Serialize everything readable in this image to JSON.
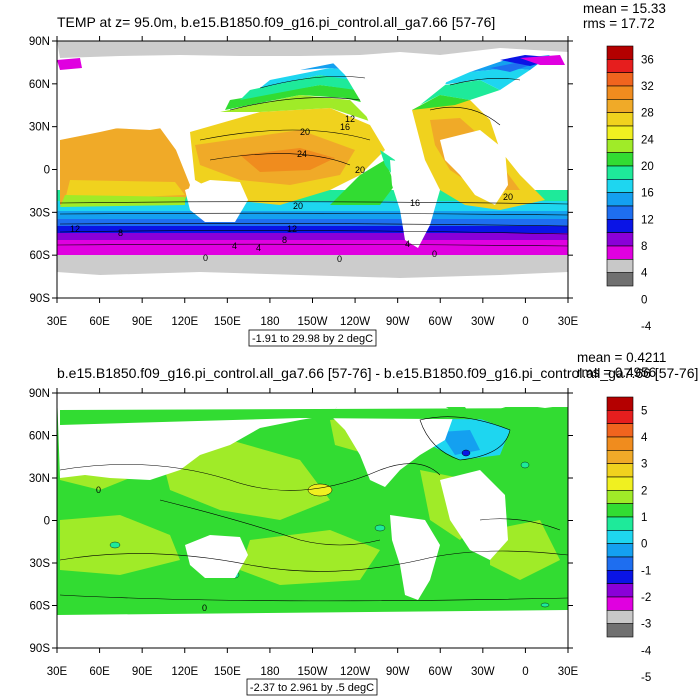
{
  "colors": {
    "land": "#ffffff",
    "ice": "#cccccc",
    "frame": "#000000",
    "palette": [
      "#707070",
      "#c8c8c8",
      "#e000e0",
      "#8a00d8",
      "#0a14e6",
      "#1e6ef0",
      "#14a0f0",
      "#1ed6f0",
      "#1eea9a",
      "#32dc32",
      "#a0eb28",
      "#f0f020",
      "#f0d21e",
      "#f0aa28",
      "#f08c1e",
      "#f0641e",
      "#e61e1e",
      "#b40000"
    ]
  },
  "panels": [
    {
      "id": "top",
      "title": "TEMP at z=  95.0m, b.e15.B1850.f09_g16.pi_control.all_ga7.66 [57-76]",
      "stats": {
        "mean": "mean = 15.33",
        "rms": "rms = 17.72"
      },
      "range_label": "-1.91 to 29.98 by 2 degC",
      "colorbar_labels": [
        "36",
        "32",
        "28",
        "24",
        "20",
        "16",
        "12",
        "8",
        "4",
        "0",
        "-4"
      ],
      "contour_labels": [
        "20",
        "16",
        "12",
        "24",
        "20",
        "20",
        "16",
        "20",
        "12",
        "8",
        "4",
        "0",
        "12",
        "8",
        "4",
        "0",
        "0",
        "4"
      ]
    },
    {
      "id": "bottom",
      "title": "b.e15.B1850.f09_g16.pi_control.all_ga7.66 [57-76] - b.e15.B1850.f09_g16.pi_control.all_ga7.66 [57-76]",
      "stats": {
        "mean": "mean = 0.4211",
        "rms": "rms = 0.4956"
      },
      "range_label": "-2.37 to 2.961 by .5 degC",
      "colorbar_labels": [
        "5",
        "4",
        "3",
        "2",
        "1",
        "0",
        "-1",
        "-2",
        "-3",
        "-4",
        "-5"
      ],
      "contour_labels": [
        "0",
        "0"
      ]
    }
  ],
  "axes": {
    "lat_labels": [
      "90N",
      "60N",
      "30N",
      "0",
      "30S",
      "60S",
      "90S"
    ],
    "lon_labels": [
      "30E",
      "60E",
      "90E",
      "120E",
      "150E",
      "180",
      "150W",
      "120W",
      "90W",
      "60W",
      "30W",
      "0",
      "30E"
    ]
  }
}
